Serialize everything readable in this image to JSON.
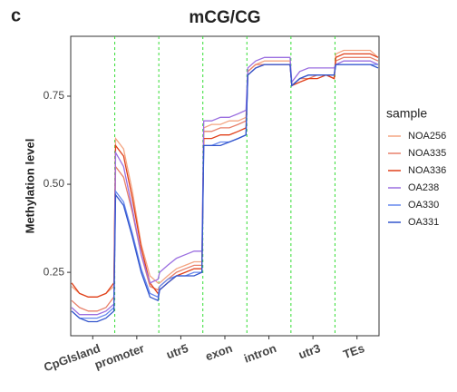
{
  "panel_label": "c",
  "chart_data": {
    "type": "line",
    "title": "mCG/CG",
    "ylabel": "Methylation level",
    "legend_title": "sample",
    "legend": "right",
    "grid": false,
    "x": [
      0.2,
      2,
      4,
      6,
      8,
      9.8,
      10.2,
      12,
      14,
      16,
      18,
      19.8,
      20.2,
      22,
      24,
      26,
      28,
      29.8,
      30.2,
      32,
      34,
      36,
      38,
      39.8,
      40.2,
      42,
      44,
      46,
      48,
      49.8,
      50.2,
      52,
      54,
      56,
      58,
      59.8,
      60.2,
      62,
      64,
      66,
      68,
      69.8
    ],
    "xlim": [
      0,
      70
    ],
    "xticks": [
      {
        "value": 5,
        "label": "CpGIsland"
      },
      {
        "value": 15,
        "label": "promoter"
      },
      {
        "value": 25,
        "label": "utr5"
      },
      {
        "value": 35,
        "label": "exon"
      },
      {
        "value": 45,
        "label": "intron"
      },
      {
        "value": 55,
        "label": "utr3"
      },
      {
        "value": 65,
        "label": "TEs"
      }
    ],
    "region_boundaries": [
      10,
      20,
      30,
      40,
      50,
      60
    ],
    "boundary_color": "#33dd33",
    "ylim": [
      0.07,
      0.92
    ],
    "yticks": [
      0.25,
      {
        "value": 0.5,
        "label": "0.50"
      },
      0.75
    ],
    "series": [
      {
        "name": "NOA256",
        "color": "#f4a582",
        "values": [
          0.21,
          0.19,
          0.18,
          0.18,
          0.19,
          0.21,
          0.63,
          0.6,
          0.48,
          0.33,
          0.24,
          0.22,
          0.22,
          0.24,
          0.26,
          0.27,
          0.28,
          0.28,
          0.66,
          0.67,
          0.67,
          0.68,
          0.68,
          0.69,
          0.82,
          0.84,
          0.85,
          0.85,
          0.85,
          0.85,
          0.78,
          0.8,
          0.81,
          0.81,
          0.81,
          0.8,
          0.87,
          0.88,
          0.88,
          0.88,
          0.88,
          0.86
        ]
      },
      {
        "name": "NOA335",
        "color": "#e8806a",
        "values": [
          0.17,
          0.15,
          0.14,
          0.14,
          0.15,
          0.18,
          0.55,
          0.52,
          0.42,
          0.3,
          0.21,
          0.2,
          0.21,
          0.23,
          0.25,
          0.26,
          0.27,
          0.27,
          0.65,
          0.65,
          0.66,
          0.66,
          0.67,
          0.68,
          0.82,
          0.84,
          0.84,
          0.84,
          0.84,
          0.84,
          0.78,
          0.8,
          0.8,
          0.81,
          0.81,
          0.8,
          0.85,
          0.86,
          0.86,
          0.86,
          0.86,
          0.85
        ]
      },
      {
        "name": "NOA336",
        "color": "#e0401a",
        "values": [
          0.22,
          0.19,
          0.18,
          0.18,
          0.19,
          0.22,
          0.61,
          0.58,
          0.46,
          0.32,
          0.22,
          0.19,
          0.2,
          0.22,
          0.24,
          0.25,
          0.26,
          0.26,
          0.63,
          0.63,
          0.64,
          0.64,
          0.65,
          0.66,
          0.81,
          0.83,
          0.84,
          0.84,
          0.84,
          0.84,
          0.78,
          0.79,
          0.8,
          0.8,
          0.81,
          0.8,
          0.86,
          0.87,
          0.87,
          0.87,
          0.87,
          0.86
        ]
      },
      {
        "name": "OA238",
        "color": "#9b6fe0",
        "values": [
          0.15,
          0.13,
          0.13,
          0.13,
          0.14,
          0.16,
          0.59,
          0.55,
          0.43,
          0.3,
          0.22,
          0.23,
          0.25,
          0.27,
          0.29,
          0.3,
          0.31,
          0.31,
          0.68,
          0.68,
          0.69,
          0.69,
          0.7,
          0.71,
          0.83,
          0.85,
          0.86,
          0.86,
          0.86,
          0.86,
          0.79,
          0.82,
          0.83,
          0.83,
          0.83,
          0.83,
          0.84,
          0.85,
          0.85,
          0.85,
          0.85,
          0.84
        ]
      },
      {
        "name": "OA330",
        "color": "#6688ee",
        "values": [
          0.14,
          0.12,
          0.12,
          0.12,
          0.13,
          0.15,
          0.48,
          0.45,
          0.36,
          0.26,
          0.19,
          0.18,
          0.21,
          0.23,
          0.24,
          0.24,
          0.25,
          0.25,
          0.61,
          0.61,
          0.62,
          0.62,
          0.63,
          0.64,
          0.81,
          0.83,
          0.84,
          0.84,
          0.84,
          0.84,
          0.78,
          0.8,
          0.81,
          0.81,
          0.81,
          0.81,
          0.84,
          0.84,
          0.84,
          0.84,
          0.84,
          0.84
        ]
      },
      {
        "name": "OA331",
        "color": "#3355cc",
        "values": [
          0.14,
          0.12,
          0.11,
          0.11,
          0.12,
          0.14,
          0.47,
          0.44,
          0.35,
          0.25,
          0.18,
          0.17,
          0.2,
          0.22,
          0.24,
          0.24,
          0.24,
          0.25,
          0.61,
          0.61,
          0.61,
          0.62,
          0.63,
          0.64,
          0.81,
          0.83,
          0.84,
          0.84,
          0.84,
          0.84,
          0.78,
          0.8,
          0.81,
          0.81,
          0.81,
          0.81,
          0.84,
          0.84,
          0.84,
          0.84,
          0.84,
          0.83
        ]
      }
    ]
  }
}
